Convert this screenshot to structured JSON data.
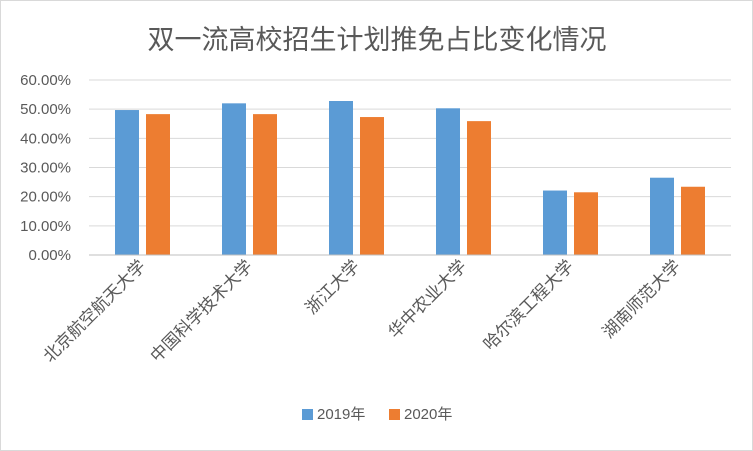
{
  "chart_data": {
    "type": "bar",
    "title": "双一流高校招生计划推免占比变化情况",
    "categories": [
      "北京航空航天大学",
      "中国科学技术大学",
      "浙江大学",
      "华中农业大学",
      "哈尔滨工程大学",
      "湖南师范大学"
    ],
    "series": [
      {
        "name": "2019年",
        "color": "#5b9bd5",
        "values": [
          0.497,
          0.52,
          0.528,
          0.503,
          0.221,
          0.265
        ]
      },
      {
        "name": "2020年",
        "color": "#ed7d31",
        "values": [
          0.483,
          0.483,
          0.473,
          0.459,
          0.215,
          0.234
        ]
      }
    ],
    "ylim": [
      0,
      0.6
    ],
    "yticks": [
      "0.00%",
      "10.00%",
      "20.00%",
      "30.00%",
      "40.00%",
      "50.00%",
      "60.00%"
    ],
    "grid": true,
    "legend_position": "bottom",
    "xlabel": "",
    "ylabel": ""
  }
}
